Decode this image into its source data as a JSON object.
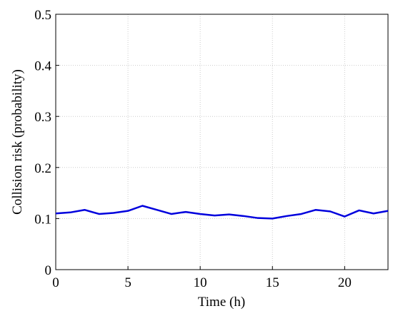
{
  "chart_data": {
    "type": "line",
    "xlabel": "Time (h)",
    "ylabel": "Collision risk (probability)",
    "x": [
      0,
      1,
      2,
      3,
      4,
      5,
      6,
      7,
      8,
      9,
      10,
      11,
      12,
      13,
      14,
      15,
      16,
      17,
      18,
      19,
      20,
      21,
      22,
      23
    ],
    "series": [
      {
        "color": "#0000dd",
        "values": [
          0.11,
          0.112,
          0.117,
          0.109,
          0.111,
          0.115,
          0.125,
          0.117,
          0.109,
          0.113,
          0.109,
          0.106,
          0.108,
          0.105,
          0.101,
          0.1,
          0.105,
          0.109,
          0.117,
          0.114,
          0.104,
          0.116,
          0.11,
          0.115
        ]
      }
    ],
    "xlim": [
      0,
      23
    ],
    "xticks": [
      0,
      5,
      10,
      15,
      20
    ],
    "ylim": [
      0,
      0.5
    ],
    "yticks": [
      0,
      0.1,
      0.2,
      0.3,
      0.4,
      0.5
    ],
    "grid": true
  }
}
